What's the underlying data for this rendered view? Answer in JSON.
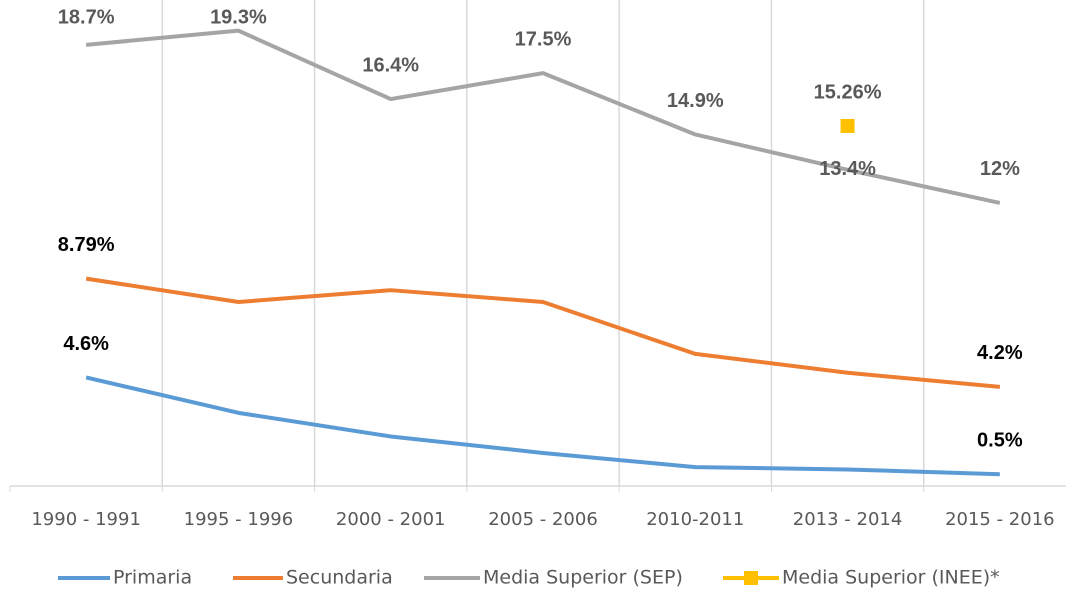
{
  "chart_data": {
    "type": "line",
    "categories": [
      "1990 - 1991",
      "1995 - 1996",
      "2000 - 2001",
      "2005 - 2006",
      "2010-2011",
      "2013 - 2014",
      "2015 - 2016"
    ],
    "ylim": [
      0,
      20.6
    ],
    "series": [
      {
        "name": "Primaria",
        "color": "#5b9bd5",
        "values": [
          4.6,
          3.1,
          2.1,
          1.4,
          0.8,
          0.7,
          0.5
        ],
        "value_labels": [
          "4.6%",
          null,
          null,
          null,
          null,
          null,
          "0.5%"
        ]
      },
      {
        "name": "Secundaria",
        "color": "#ed7d31",
        "values": [
          8.79,
          7.8,
          8.3,
          7.8,
          5.6,
          4.8,
          4.2
        ],
        "value_labels": [
          "8.79%",
          null,
          null,
          null,
          null,
          null,
          "4.2%"
        ]
      },
      {
        "name": "Media Superior (SEP)",
        "color": "#a5a5a5",
        "values": [
          18.7,
          19.3,
          16.4,
          17.5,
          14.9,
          13.4,
          12
        ],
        "value_labels": [
          "18.7%",
          "19.3%",
          "16.4%",
          "17.5%",
          "14.9%",
          "13.4%",
          "12%"
        ]
      },
      {
        "name": "Media Superior (INEE)*",
        "color": "#ffc000",
        "marker": "square",
        "values": [
          null,
          null,
          null,
          null,
          null,
          15.26,
          null
        ],
        "value_labels": [
          null,
          null,
          null,
          null,
          null,
          "15.26%",
          null
        ]
      }
    ]
  }
}
